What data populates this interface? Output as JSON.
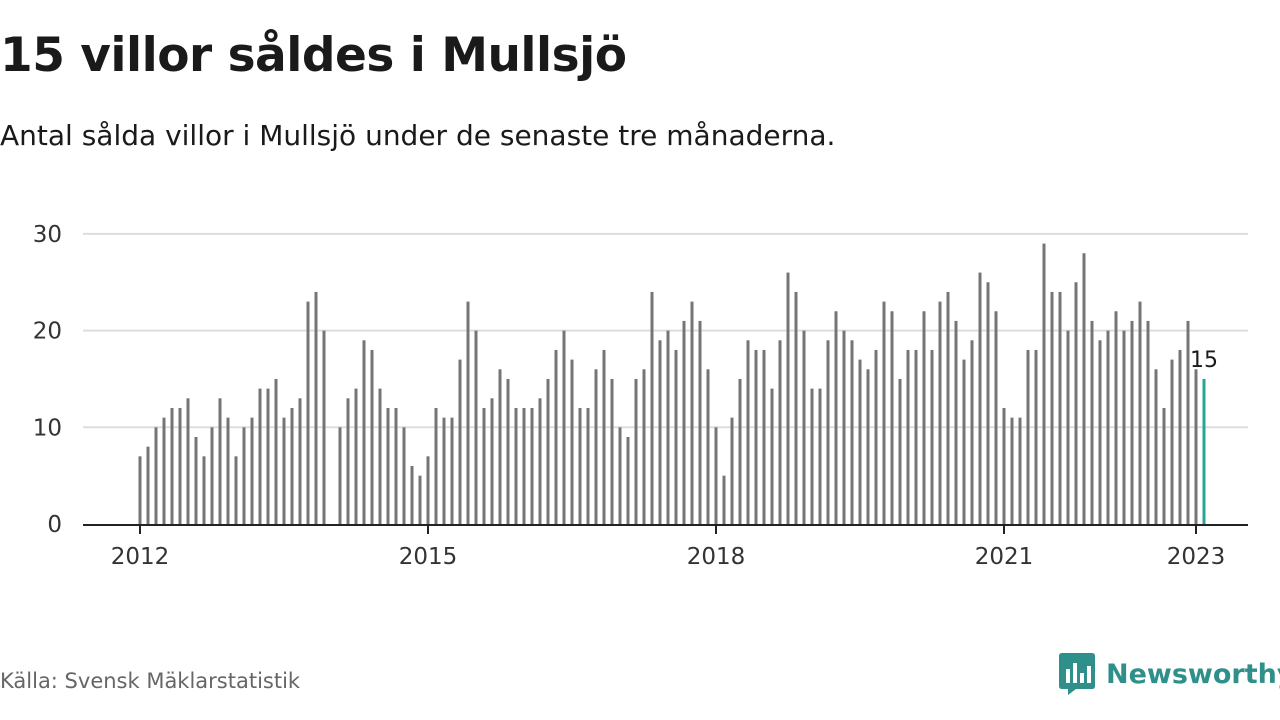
{
  "header": {
    "title": "15 villor såldes i Mullsjö",
    "subtitle": "Antal sålda villor i Mullsjö under de senaste tre månaderna."
  },
  "footer": {
    "source": "Källa: Svensk Mäklarstatistik",
    "brand": "Newsworthy",
    "brand_logo_icon": "newsworthy-logo-icon"
  },
  "colors": {
    "bar": "#757575",
    "highlight": "#26a69a",
    "grid": "#dddddd",
    "axis": "#222222",
    "brand": "#2f8f8a"
  },
  "chart_data": {
    "type": "bar",
    "title": "15 villor såldes i Mullsjö",
    "subtitle": "Antal sålda villor i Mullsjö under de senaste tre månaderna.",
    "x_start": "2012-01",
    "frequency": "monthly",
    "x_range": [
      "2011-12",
      "2023-07"
    ],
    "x_ticks": [
      "2012",
      "2015",
      "2018",
      "2021",
      "2023"
    ],
    "y_ticks": [
      0,
      10,
      20,
      30
    ],
    "ylim": [
      0,
      31
    ],
    "grid": true,
    "values": [
      7,
      8,
      10,
      11,
      12,
      12,
      13,
      9,
      7,
      10,
      13,
      11,
      7,
      10,
      11,
      14,
      14,
      15,
      11,
      12,
      13,
      23,
      24,
      20,
      null,
      10,
      13,
      14,
      19,
      18,
      14,
      12,
      12,
      10,
      6,
      5,
      7,
      12,
      11,
      11,
      17,
      23,
      20,
      12,
      13,
      16,
      15,
      12,
      12,
      12,
      13,
      15,
      18,
      20,
      17,
      12,
      12,
      16,
      18,
      15,
      10,
      9,
      15,
      16,
      24,
      19,
      20,
      18,
      21,
      23,
      21,
      16,
      10,
      5,
      11,
      15,
      19,
      18,
      18,
      14,
      19,
      26,
      24,
      20,
      14,
      14,
      19,
      22,
      20,
      19,
      17,
      16,
      18,
      23,
      22,
      15,
      18,
      18,
      22,
      18,
      23,
      24,
      21,
      17,
      19,
      26,
      25,
      22,
      12,
      11,
      11,
      18,
      18,
      29,
      24,
      24,
      20,
      25,
      28,
      21,
      19,
      20,
      22,
      20,
      21,
      23,
      21,
      16,
      12,
      17,
      18,
      21,
      16,
      15
    ],
    "highlight": {
      "x": "2023-02",
      "value": 15,
      "label": "15"
    }
  }
}
